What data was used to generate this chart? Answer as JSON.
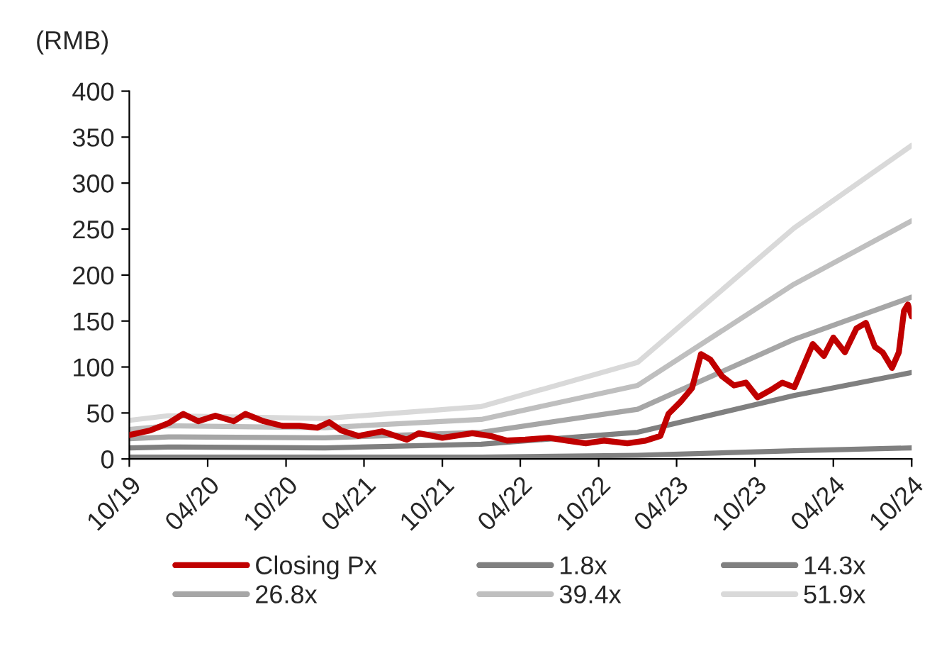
{
  "chart_data": {
    "type": "line",
    "ylabel": "(RMB)",
    "xlim": [
      "2019-10-01",
      "2024-10-01"
    ],
    "xticks": [
      {
        "value": "2019-10-01",
        "label": "10/19"
      },
      {
        "value": "2020-04-01",
        "label": "04/20"
      },
      {
        "value": "2020-10-01",
        "label": "10/20"
      },
      {
        "value": "2021-04-01",
        "label": "04/21"
      },
      {
        "value": "2021-10-01",
        "label": "10/21"
      },
      {
        "value": "2022-04-01",
        "label": "04/22"
      },
      {
        "value": "2022-10-01",
        "label": "10/22"
      },
      {
        "value": "2023-04-01",
        "label": "04/23"
      },
      {
        "value": "2023-10-01",
        "label": "10/23"
      },
      {
        "value": "2024-04-01",
        "label": "04/24"
      },
      {
        "value": "2024-10-01",
        "label": "10/24"
      }
    ],
    "ylim": [
      0,
      400
    ],
    "yticks": [
      0,
      50,
      100,
      150,
      200,
      250,
      300,
      350,
      400
    ],
    "grid": false,
    "legend": "bottom",
    "marker": "none",
    "line_style": "solid",
    "series": [
      {
        "name": "Closing Px",
        "color": "#c00000",
        "x": [
          "2019-10-01",
          "2019-11-19",
          "2020-01-01",
          "2020-02-04",
          "2020-03-10",
          "2020-04-19",
          "2020-06-01",
          "2020-06-28",
          "2020-08-10",
          "2020-09-22",
          "2020-11-01",
          "2020-12-13",
          "2021-01-10",
          "2021-02-07",
          "2021-03-19",
          "2021-05-13",
          "2021-07-10",
          "2021-08-07",
          "2021-10-01",
          "2021-12-10",
          "2022-01-22",
          "2022-03-01",
          "2022-04-13",
          "2022-06-07",
          "2022-07-19",
          "2022-09-01",
          "2022-10-13",
          "2022-12-07",
          "2023-01-19",
          "2023-02-22",
          "2023-03-13",
          "2023-04-10",
          "2023-05-07",
          "2023-05-28",
          "2023-06-19",
          "2023-07-16",
          "2023-08-13",
          "2023-09-10",
          "2023-10-07",
          "2023-11-07",
          "2023-12-04",
          "2024-01-01",
          "2024-02-13",
          "2024-03-10",
          "2024-04-01",
          "2024-04-28",
          "2024-05-25",
          "2024-06-16",
          "2024-07-07",
          "2024-07-25",
          "2024-08-16",
          "2024-09-01",
          "2024-09-13",
          "2024-09-22",
          "2024-10-01"
        ],
        "values": [
          26,
          31,
          39,
          49,
          41,
          47,
          41,
          49,
          41,
          36,
          36,
          34,
          40,
          31,
          25,
          30,
          21,
          28,
          23,
          28,
          25,
          20,
          21,
          23,
          20,
          17,
          20,
          17,
          20,
          25,
          49,
          62,
          77,
          114,
          108,
          90,
          80,
          83,
          67,
          75,
          83,
          78,
          125,
          112,
          132,
          116,
          142,
          148,
          122,
          116,
          99,
          116,
          161,
          168,
          155
        ]
      },
      {
        "name": "1.8x",
        "color": "#808080",
        "x": [
          "2019-10-01",
          "2019-12-31",
          "2020-12-31",
          "2021-12-31",
          "2022-12-31",
          "2023-12-31",
          "2024-10-01"
        ],
        "values": [
          2,
          2,
          2,
          2,
          4,
          9,
          12
        ]
      },
      {
        "name": "14.3x",
        "color": "#808080",
        "x": [
          "2019-10-01",
          "2019-12-31",
          "2020-12-31",
          "2021-12-31",
          "2022-12-31",
          "2023-12-31",
          "2024-10-01"
        ],
        "values": [
          12,
          13,
          12,
          16,
          29,
          69,
          94
        ]
      },
      {
        "name": "26.8x",
        "color": "#a6a6a6",
        "x": [
          "2019-10-01",
          "2019-12-31",
          "2020-12-31",
          "2021-12-31",
          "2022-12-31",
          "2023-12-31",
          "2024-10-01"
        ],
        "values": [
          22,
          24,
          23,
          29,
          54,
          130,
          176
        ]
      },
      {
        "name": "39.4x",
        "color": "#bfbfbf",
        "x": [
          "2019-10-01",
          "2019-12-31",
          "2020-12-31",
          "2021-12-31",
          "2022-12-31",
          "2023-12-31",
          "2024-10-01"
        ],
        "values": [
          32,
          36,
          34,
          43,
          80,
          190,
          259
        ]
      },
      {
        "name": "51.9x",
        "color": "#d9d9d9",
        "x": [
          "2019-10-01",
          "2019-12-31",
          "2020-12-31",
          "2021-12-31",
          "2022-12-31",
          "2023-12-31",
          "2024-10-01"
        ],
        "values": [
          42,
          47,
          44,
          57,
          105,
          251,
          341
        ]
      }
    ]
  }
}
